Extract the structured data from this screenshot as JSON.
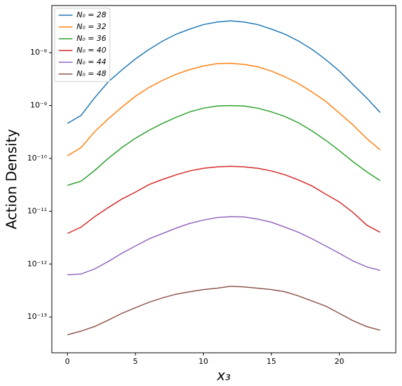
{
  "chart_data": {
    "type": "line",
    "xlabel": "x₃",
    "ylabel": "Action Density",
    "x": [
      0,
      1,
      2,
      3,
      4,
      5,
      6,
      7,
      8,
      9,
      10,
      11,
      12,
      13,
      14,
      15,
      16,
      17,
      18,
      19,
      20,
      21,
      22,
      23
    ],
    "xlim": [
      -1.15,
      24.15
    ],
    "xticks": [
      0,
      5,
      10,
      15,
      20
    ],
    "ylim": [
      2.1e-14,
      7.8e-08
    ],
    "log_y": true,
    "yticks": [
      {
        "value": 1e-13,
        "label": "10⁻¹³"
      },
      {
        "value": 1e-12,
        "label": "10⁻¹²"
      },
      {
        "value": 1e-11,
        "label": "10⁻¹¹"
      },
      {
        "value": 1e-10,
        "label": "10⁻¹⁰"
      },
      {
        "value": 1e-09,
        "label": "10⁻⁹"
      },
      {
        "value": 1e-08,
        "label": "10⁻⁸"
      }
    ],
    "legend": "upper left",
    "series": [
      {
        "name": "N₀ = 28",
        "color": "#1f77b4",
        "values": [
          4.6e-10,
          6.5e-10,
          1.4e-09,
          2.8e-09,
          4.7e-09,
          7.6e-09,
          1.15e-08,
          1.66e-08,
          2.24e-08,
          2.8e-08,
          3.4e-08,
          3.8e-08,
          4e-08,
          3.8e-08,
          3.4e-08,
          2.8e-08,
          2.24e-08,
          1.66e-08,
          1.15e-08,
          7.4e-09,
          4.5e-09,
          2.5e-09,
          1.4e-09,
          7.4e-10
        ]
      },
      {
        "name": "N₀ = 32",
        "color": "#ff7f0e",
        "values": [
          1.12e-10,
          1.6e-10,
          3.2e-10,
          5.6e-10,
          9.3e-10,
          1.5e-09,
          2.2e-09,
          3e-09,
          3.9e-09,
          4.8e-09,
          5.6e-09,
          6.2e-09,
          6.3e-09,
          6e-09,
          5.4e-09,
          4.5e-09,
          3.5e-09,
          2.6e-09,
          1.8e-09,
          1.2e-09,
          7.2e-10,
          4.3e-10,
          2.4e-10,
          1.45e-10
        ]
      },
      {
        "name": "N₀ = 36",
        "color": "#2ca02c",
        "values": [
          3.1e-11,
          3.7e-11,
          5.9e-11,
          1e-10,
          1.6e-10,
          2.4e-10,
          3.4e-10,
          4.6e-10,
          6e-10,
          7.6e-10,
          8.9e-10,
          9.8e-10,
          1e-09,
          9.8e-10,
          8.9e-10,
          7.6e-10,
          6.2e-10,
          4.7e-10,
          3.3e-10,
          2.2e-10,
          1.4e-10,
          8.7e-11,
          5.6e-11,
          3.8e-11
        ]
      },
      {
        "name": "N₀ = 40",
        "color": "#d62728",
        "values": [
          3.8e-12,
          5e-12,
          7.9e-12,
          1.17e-11,
          1.7e-11,
          2.3e-11,
          3.2e-11,
          4e-11,
          4.9e-11,
          5.8e-11,
          6.5e-11,
          6.9e-11,
          7.1e-11,
          6.9e-11,
          6.5e-11,
          5.8e-11,
          4.9e-11,
          3.9e-11,
          3e-11,
          2.1e-11,
          1.5e-11,
          9.5e-12,
          5.5e-12,
          4e-12
        ]
      },
      {
        "name": "N₀ = 44",
        "color": "#9467bd",
        "values": [
          6.3e-13,
          6.5e-13,
          8.1e-13,
          1.12e-12,
          1.6e-12,
          2.2e-12,
          3e-12,
          3.8e-12,
          4.8e-12,
          5.9e-12,
          6.8e-12,
          7.6e-12,
          7.9e-12,
          7.8e-12,
          7.1e-12,
          6.2e-12,
          5e-12,
          4e-12,
          3e-12,
          2.2e-12,
          1.6e-12,
          1.15e-12,
          8.9e-13,
          7.6e-13
        ]
      },
      {
        "name": "N₀ = 48",
        "color": "#8c564b",
        "values": [
          4.6e-14,
          5.4e-14,
          6.6e-14,
          8.7e-14,
          1.17e-13,
          1.5e-13,
          1.9e-13,
          2.3e-13,
          2.7e-13,
          3e-13,
          3.3e-13,
          3.5e-13,
          3.8e-13,
          3.7e-13,
          3.5e-13,
          3.3e-13,
          3e-13,
          2.5e-13,
          2e-13,
          1.6e-13,
          1.17e-13,
          8.5e-14,
          6.6e-14,
          5.6e-14
        ]
      }
    ]
  }
}
